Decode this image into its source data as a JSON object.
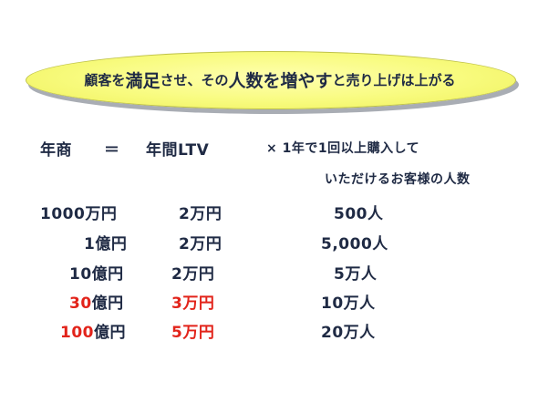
{
  "headline": {
    "part1": "顧客を",
    "part2": "満足",
    "part3": "させ、その",
    "part4": "人数",
    "part5": "を",
    "part6": "増",
    "part7": "や",
    "part8": "す",
    "part9": "と売り上げは上がる"
  },
  "formula": {
    "lhs": "年商",
    "eq": "＝",
    "rhs": "年間LTV",
    "mult_line1": "× 1年で1回以上購入して",
    "mult_line2": "いただけるお客様の人数"
  },
  "rows": [
    {
      "revenue_num": "",
      "revenue_suffix": "1000万円",
      "ltv_num": "",
      "ltv_suffix": "2万円",
      "people": "500人",
      "highlight": false
    },
    {
      "revenue_num": "",
      "revenue_suffix": "1億円",
      "ltv_num": "",
      "ltv_suffix": "2万円",
      "people": "5,000人",
      "highlight": false
    },
    {
      "revenue_num": "",
      "revenue_suffix": "10億円",
      "ltv_num": "",
      "ltv_suffix": "2万円",
      "people": "5万人",
      "highlight": false
    },
    {
      "revenue_num": "30",
      "revenue_suffix": "億円",
      "ltv_num": "3万円",
      "ltv_suffix": "",
      "people": "10万人",
      "highlight": true
    },
    {
      "revenue_num": "100",
      "revenue_suffix": "億円",
      "ltv_num": "5万円",
      "ltv_suffix": "",
      "people": "20万人",
      "highlight": true
    }
  ],
  "colors": {
    "text": "#1f2a44",
    "accent": "#e2231a",
    "banner": "#f8fb7e"
  }
}
